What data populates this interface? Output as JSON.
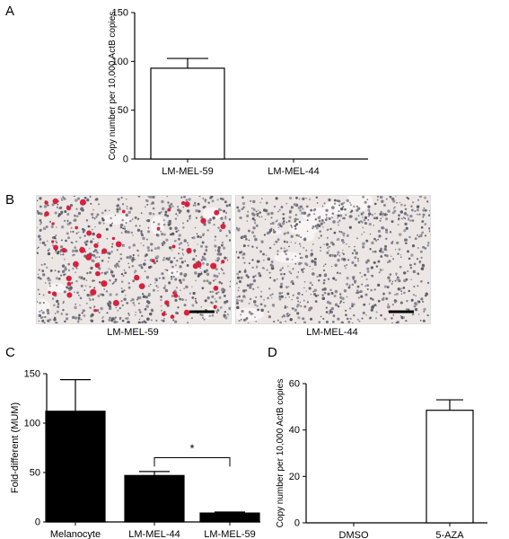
{
  "panels": {
    "A": {
      "letter": "A"
    },
    "B": {
      "letter": "B",
      "left_caption": "LM-MEL-59",
      "right_caption": "LM-MEL-44"
    },
    "C": {
      "letter": "C",
      "significance": "*"
    },
    "D": {
      "letter": "D"
    }
  },
  "chart_data": [
    {
      "id": "A",
      "type": "bar",
      "categories": [
        "LM-MEL-59",
        "LM-MEL-44"
      ],
      "values": [
        93,
        0
      ],
      "errors": [
        10,
        0
      ],
      "bar_fill": "#ffffff",
      "ylabel": "Copy number per 10,000 ActB copies",
      "ylim": [
        0,
        150
      ],
      "yticks": [
        0,
        50,
        100,
        150
      ]
    },
    {
      "id": "C",
      "type": "bar",
      "categories": [
        "Melanocyte",
        "LM-MEL-44",
        "LM-MEL-59"
      ],
      "values": [
        112,
        47,
        9
      ],
      "errors": [
        32,
        4,
        1
      ],
      "bar_fill": "#000000",
      "ylabel": "Fold-different (MUM)",
      "ylim": [
        0,
        150
      ],
      "yticks": [
        0,
        50,
        100,
        150
      ]
    },
    {
      "id": "D",
      "type": "bar",
      "categories": [
        "DMSO",
        "5-AZA"
      ],
      "values": [
        0,
        48.5
      ],
      "errors": [
        0,
        4.5
      ],
      "bar_fill": "#ffffff",
      "ylabel": "Copy number per 10,000 ActB copies",
      "ylim": [
        0,
        60
      ],
      "yticks": [
        0,
        20,
        40,
        60
      ]
    }
  ]
}
